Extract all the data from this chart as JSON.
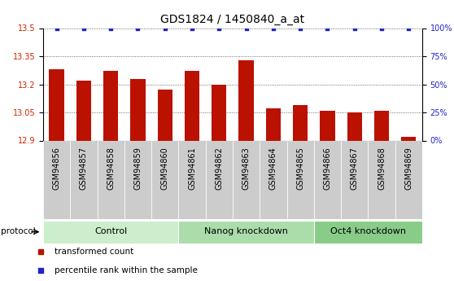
{
  "title": "GDS1824 / 1450840_a_at",
  "samples": [
    "GSM94856",
    "GSM94857",
    "GSM94858",
    "GSM94859",
    "GSM94860",
    "GSM94861",
    "GSM94862",
    "GSM94863",
    "GSM94864",
    "GSM94865",
    "GSM94866",
    "GSM94867",
    "GSM94868",
    "GSM94869"
  ],
  "bar_values": [
    13.28,
    13.22,
    13.27,
    13.23,
    13.17,
    13.27,
    13.2,
    13.33,
    13.07,
    13.09,
    13.06,
    13.05,
    13.06,
    12.92
  ],
  "percentile_values": [
    100,
    100,
    100,
    100,
    100,
    100,
    100,
    100,
    100,
    100,
    100,
    100,
    100,
    100
  ],
  "bar_color": "#bb1100",
  "percentile_color": "#2222cc",
  "ylim_left": [
    12.9,
    13.5
  ],
  "ylim_right": [
    0,
    100
  ],
  "yticks_left": [
    12.9,
    13.05,
    13.2,
    13.35,
    13.5
  ],
  "yticks_right": [
    0,
    25,
    50,
    75,
    100
  ],
  "ytick_labels_right": [
    "0%",
    "25%",
    "50%",
    "75%",
    "100%"
  ],
  "groups": [
    {
      "label": "Control",
      "start": 0,
      "end": 5,
      "color": "#cceecc"
    },
    {
      "label": "Nanog knockdown",
      "start": 5,
      "end": 10,
      "color": "#aaddaa"
    },
    {
      "label": "Oct4 knockdown",
      "start": 10,
      "end": 14,
      "color": "#88cc88"
    }
  ],
  "protocol_label": "protocol",
  "legend_items": [
    {
      "label": "transformed count",
      "color": "#bb1100"
    },
    {
      "label": "percentile rank within the sample",
      "color": "#2222cc"
    }
  ],
  "bg_color": "#ffffff",
  "tick_bg_color": "#cccccc",
  "dotted_line_color": "#444444",
  "title_fontsize": 10,
  "tick_fontsize": 7,
  "group_fontsize": 8
}
